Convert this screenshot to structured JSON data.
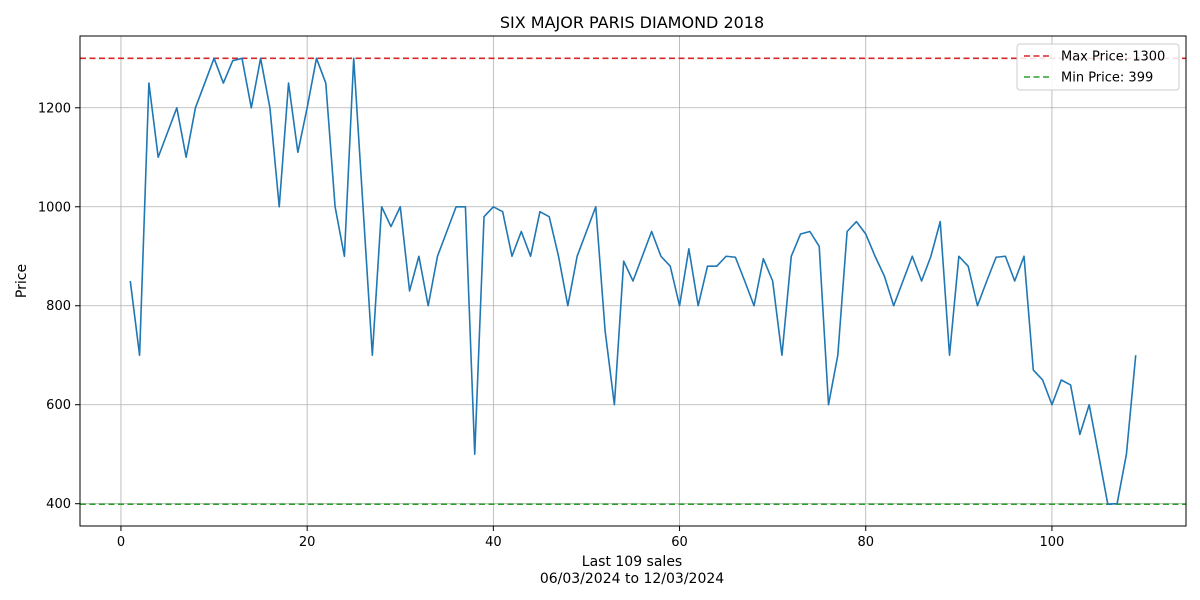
{
  "chart_data": {
    "type": "line",
    "title": "SIX MAJOR PARIS DIAMOND 2018",
    "xlabel": "Last 109 sales",
    "xlabel_sub": "06/03/2024 to 12/03/2024",
    "ylabel": "Price",
    "xlim": [
      -4.4,
      114.4
    ],
    "ylim": [
      354.95,
      1345.05
    ],
    "x_ticks": [
      0,
      20,
      40,
      60,
      80,
      100
    ],
    "y_ticks": [
      400,
      600,
      800,
      1000,
      1200
    ],
    "grid": true,
    "legend_position": "top-right",
    "series": [
      {
        "color": "#1f77b4",
        "values": [
          850,
          700,
          1250,
          1100,
          1150,
          1200,
          1100,
          1200,
          1250,
          1300,
          1250,
          1295,
          1300,
          1200,
          1300,
          1200,
          1000,
          1250,
          1110,
          1200,
          1300,
          1250,
          1000,
          900,
          1300,
          1000,
          700,
          1000,
          960,
          1000,
          830,
          900,
          800,
          900,
          950,
          1000,
          1000,
          500,
          980,
          1000,
          990,
          900,
          950,
          900,
          990,
          980,
          900,
          800,
          900,
          950,
          1000,
          750,
          600,
          890,
          850,
          900,
          950,
          900,
          880,
          800,
          915,
          800,
          880,
          880,
          900,
          898,
          850,
          800,
          895,
          850,
          700,
          900,
          945,
          950,
          920,
          600,
          700,
          950,
          970,
          945,
          900,
          860,
          800,
          850,
          900,
          850,
          900,
          970,
          700,
          900,
          880,
          800,
          850,
          898,
          900,
          850,
          900,
          670,
          650,
          600,
          650,
          640,
          540,
          600,
          500,
          399,
          400,
          500,
          700
        ]
      }
    ],
    "reference_lines": [
      {
        "label": "Max Price: 1300",
        "value": 1300,
        "color": "#d62728"
      },
      {
        "label": "Min Price: 399",
        "value": 399,
        "color": "#2ca02c"
      }
    ]
  }
}
